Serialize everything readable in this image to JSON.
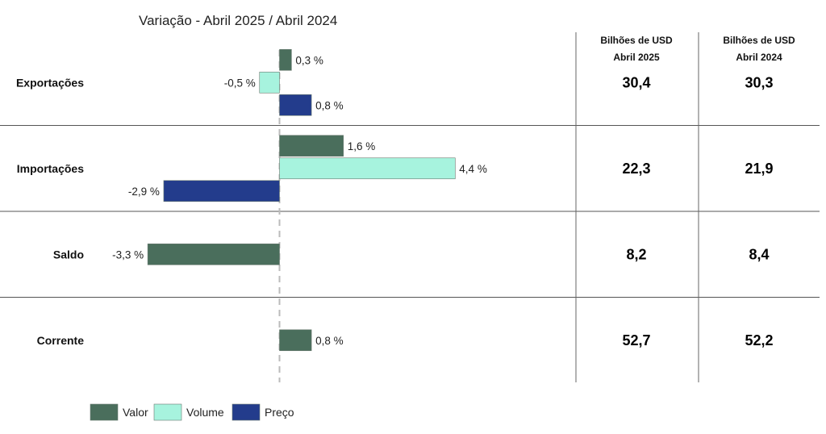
{
  "chart_data": {
    "type": "bar",
    "orientation": "horizontal",
    "title": "Variação - Abril 2025 / Abril 2024",
    "categories": [
      "Exportações",
      "Importações",
      "Saldo",
      "Corrente"
    ],
    "series": [
      {
        "name": "Valor",
        "color": "#4a6e5c",
        "values": [
          0.3,
          1.6,
          -3.3,
          0.8
        ],
        "labels": [
          "0,3 %",
          "1,6 %",
          "-3,3 %",
          "0,8 %"
        ]
      },
      {
        "name": "Volume",
        "color": "#a7f3de",
        "values": [
          -0.5,
          4.4,
          null,
          null
        ],
        "labels": [
          "-0,5 %",
          "4,4 %",
          "",
          ""
        ]
      },
      {
        "name": "Preço",
        "color": "#233c8c",
        "values": [
          0.8,
          -2.9,
          null,
          null
        ],
        "labels": [
          "0,8 %",
          "-2,9 %",
          "",
          ""
        ]
      }
    ],
    "legend": "bottom-left",
    "table": {
      "columns": [
        {
          "line1": "Bilhões de USD",
          "line2": "Abril 2025"
        },
        {
          "line1": "Bilhões de USD",
          "line2": "Abril 2024"
        }
      ],
      "rows": [
        [
          "30,4",
          "30,3"
        ],
        [
          "22,3",
          "21,9"
        ],
        [
          "8,2",
          "8,4"
        ],
        [
          "52,7",
          "52,2"
        ]
      ]
    }
  }
}
